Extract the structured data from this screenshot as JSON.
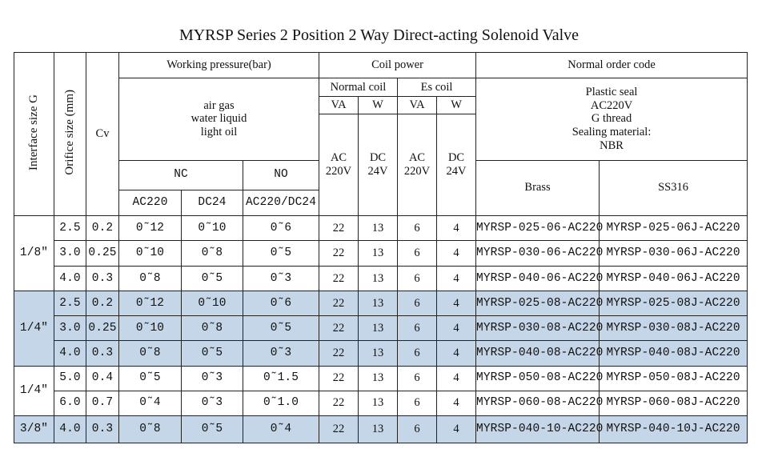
{
  "title": "MYRSP Series 2 Position 2 Way Direct-acting Solenoid Valve",
  "header": {
    "interface_size": "Interface size G",
    "orifice_size": "Orifice size (mm)",
    "cv": "Cv",
    "working_pressure": "Working pressure(bar)",
    "media": [
      "air gas",
      "water liquid",
      "light oil"
    ],
    "nc": "NC",
    "no": "NO",
    "nc_ac": "AC220",
    "nc_dc": "DC24",
    "no_acdc": "AC220/DC24",
    "coil_power": "Coil power",
    "normal_coil": "Normal coil",
    "es_coil": "Es coil",
    "va": "VA",
    "w": "W",
    "ac_label": "AC",
    "ac_value": "220V",
    "dc_label": "DC",
    "dc_value": "24V",
    "normal_order_code": "Normal order code",
    "order_notes": [
      "Plastic seal",
      "AC220V",
      "G thread",
      "Sealing material:",
      "NBR"
    ],
    "brass": "Brass",
    "ss316": "SS316"
  },
  "rows": [
    {
      "group": "1/8″",
      "orifice": "2.5",
      "cv": "0.2",
      "nc_ac": "0˜12",
      "nc_dc": "0˜10",
      "no": "0˜6",
      "va_n": "22",
      "w_n": "13",
      "va_e": "6",
      "w_e": "4",
      "brass": "MYRSP-025-06-AC220",
      "ss316": "MYRSP-025-06J-AC220"
    },
    {
      "group": "1/8″",
      "orifice": "3.0",
      "cv": "0.25",
      "nc_ac": "0˜10",
      "nc_dc": "0˜8",
      "no": "0˜5",
      "va_n": "22",
      "w_n": "13",
      "va_e": "6",
      "w_e": "4",
      "brass": "MYRSP-030-06-AC220",
      "ss316": "MYRSP-030-06J-AC220"
    },
    {
      "group": "1/8″",
      "orifice": "4.0",
      "cv": "0.3",
      "nc_ac": "0˜8",
      "nc_dc": "0˜5",
      "no": "0˜3",
      "va_n": "22",
      "w_n": "13",
      "va_e": "6",
      "w_e": "4",
      "brass": "MYRSP-040-06-AC220",
      "ss316": "MYRSP-040-06J-AC220"
    },
    {
      "group": "1/4″",
      "orifice": "2.5",
      "cv": "0.2",
      "nc_ac": "0˜12",
      "nc_dc": "0˜10",
      "no": "0˜6",
      "va_n": "22",
      "w_n": "13",
      "va_e": "6",
      "w_e": "4",
      "brass": "MYRSP-025-08-AC220",
      "ss316": "MYRSP-025-08J-AC220"
    },
    {
      "group": "1/4″",
      "orifice": "3.0",
      "cv": "0.25",
      "nc_ac": "0˜10",
      "nc_dc": "0˜8",
      "no": "0˜5",
      "va_n": "22",
      "w_n": "13",
      "va_e": "6",
      "w_e": "4",
      "brass": "MYRSP-030-08-AC220",
      "ss316": "MYRSP-030-08J-AC220"
    },
    {
      "group": "1/4″",
      "orifice": "4.0",
      "cv": "0.3",
      "nc_ac": "0˜8",
      "nc_dc": "0˜5",
      "no": "0˜3",
      "va_n": "22",
      "w_n": "13",
      "va_e": "6",
      "w_e": "4",
      "brass": "MYRSP-040-08-AC220",
      "ss316": "MYRSP-040-08J-AC220"
    },
    {
      "group": "1/4″",
      "orifice": "5.0",
      "cv": "0.4",
      "nc_ac": "0˜5",
      "nc_dc": "0˜3",
      "no": "0˜1.5",
      "va_n": "22",
      "w_n": "13",
      "va_e": "6",
      "w_e": "4",
      "brass": "MYRSP-050-08-AC220",
      "ss316": "MYRSP-050-08J-AC220"
    },
    {
      "group": "1/4″",
      "orifice": "6.0",
      "cv": "0.7",
      "nc_ac": "0˜4",
      "nc_dc": "0˜3",
      "no": "0˜1.0",
      "va_n": "22",
      "w_n": "13",
      "va_e": "6",
      "w_e": "4",
      "brass": "MYRSP-060-08-AC220",
      "ss316": "MYRSP-060-08J-AC220"
    },
    {
      "group": "3/8″",
      "orifice": "4.0",
      "cv": "0.3",
      "nc_ac": "0˜8",
      "nc_dc": "0˜5",
      "no": "0˜4",
      "va_n": "22",
      "w_n": "13",
      "va_e": "6",
      "w_e": "4",
      "brass": "MYRSP-040-10-AC220",
      "ss316": "MYRSP-040-10J-AC220"
    }
  ],
  "highlight_color": "#c5d6e8"
}
